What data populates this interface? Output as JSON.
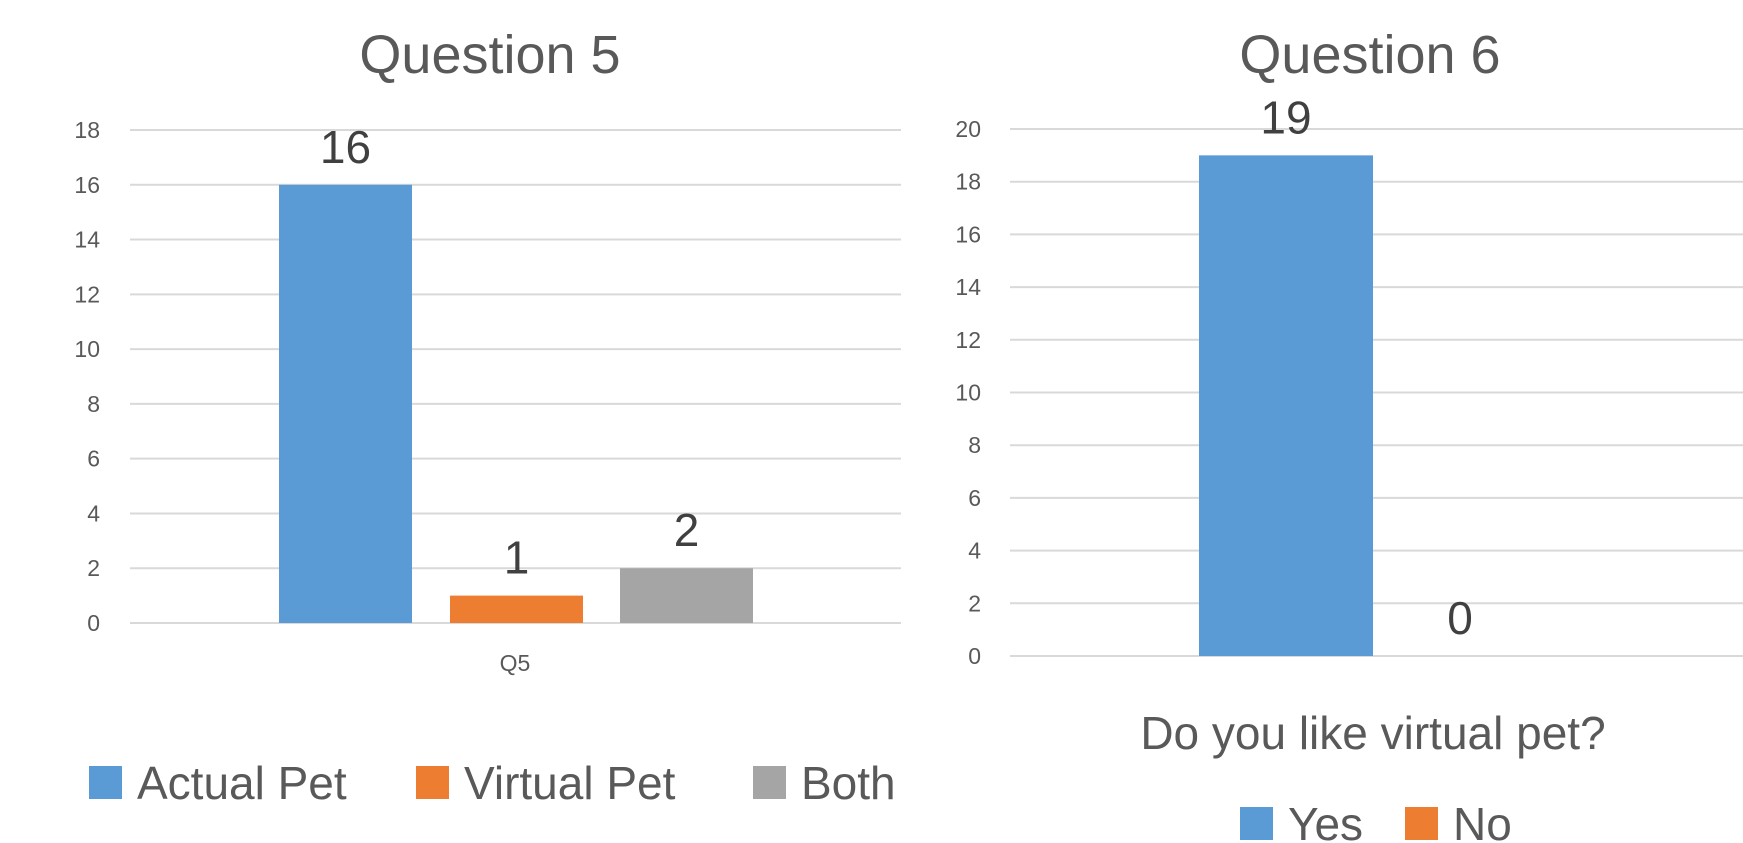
{
  "chart_data": [
    {
      "type": "bar",
      "title": "Question 5",
      "categories": [
        "Q5"
      ],
      "series": [
        {
          "name": "Actual Pet",
          "values": [
            16
          ],
          "color": "#5b9bd5"
        },
        {
          "name": "Virtual Pet",
          "values": [
            1
          ],
          "color": "#ed7d31"
        },
        {
          "name": "Both",
          "values": [
            2
          ],
          "color": "#a5a5a5"
        }
      ],
      "ylim": [
        0,
        18
      ],
      "ytick_step": 2,
      "yticks": [
        "0",
        "2",
        "4",
        "6",
        "8",
        "10",
        "12",
        "14",
        "16",
        "18"
      ],
      "xlabel": "",
      "ylabel": "",
      "grid": true,
      "legend": "bottom"
    },
    {
      "type": "bar",
      "title": "Question 6",
      "categories": [
        ""
      ],
      "series": [
        {
          "name": "Yes",
          "values": [
            19
          ],
          "color": "#5b9bd5"
        },
        {
          "name": "No",
          "values": [
            0
          ],
          "color": "#ed7d31"
        }
      ],
      "ylim": [
        0,
        20
      ],
      "ytick_step": 2,
      "yticks": [
        "0",
        "2",
        "4",
        "6",
        "8",
        "10",
        "12",
        "14",
        "16",
        "18",
        "20"
      ],
      "xlabel": "Do you like virtual pet?",
      "ylabel": "",
      "grid": true,
      "legend": "bottom"
    }
  ]
}
